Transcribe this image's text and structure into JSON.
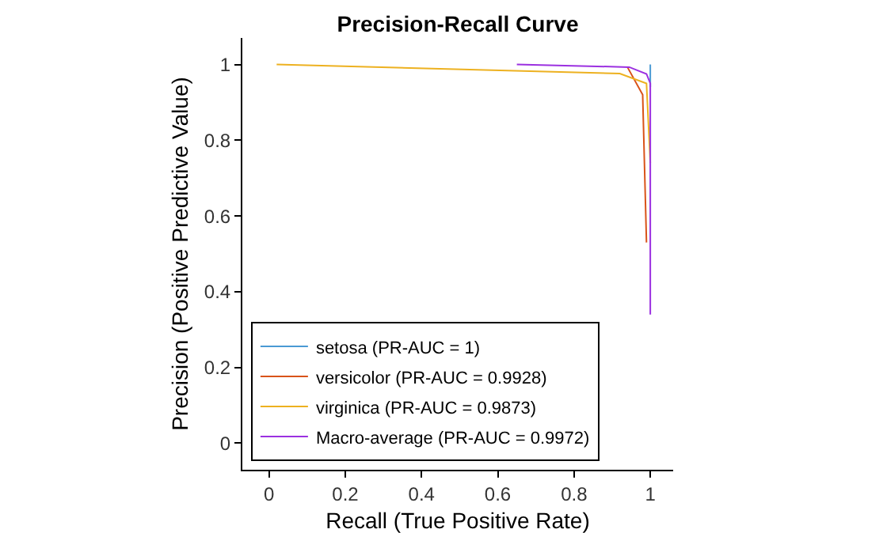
{
  "chart_data": {
    "type": "line",
    "title": "Precision-Recall Curve",
    "xlabel": "Recall (True Positive Rate)",
    "ylabel": "Precision (Positive Predictive Value)",
    "xlim": [
      -0.07,
      1.06
    ],
    "ylim": [
      -0.07,
      1.07
    ],
    "xticks": [
      0,
      0.2,
      0.4,
      0.6,
      0.8,
      1
    ],
    "yticks": [
      0,
      0.2,
      0.4,
      0.6,
      0.8,
      1
    ],
    "grid": false,
    "legend": "bottom left",
    "marker": "none",
    "line_style": "solid",
    "series": [
      {
        "name": "setosa (PR-AUC = 1)",
        "color": "#4a9ad4",
        "x": [
          1,
          1
        ],
        "values": [
          1,
          0.94
        ]
      },
      {
        "name": "versicolor (PR-AUC = 0.9928)",
        "color": "#d95319",
        "x": [
          0.94,
          0.98,
          0.99
        ],
        "values": [
          0.993,
          0.92,
          0.53
        ]
      },
      {
        "name": "virginica (PR-AUC = 0.9873)",
        "color": "#edb120",
        "x": [
          0.02,
          0.92,
          0.99,
          1
        ],
        "values": [
          1.0,
          0.976,
          0.95,
          0.74
        ]
      },
      {
        "name": "Macro-average (PR-AUC = 0.9972)",
        "color": "#9b30e0",
        "x": [
          0.65,
          0.945,
          0.99,
          1,
          1
        ],
        "values": [
          1.0,
          0.993,
          0.975,
          0.95,
          0.34
        ]
      }
    ]
  }
}
